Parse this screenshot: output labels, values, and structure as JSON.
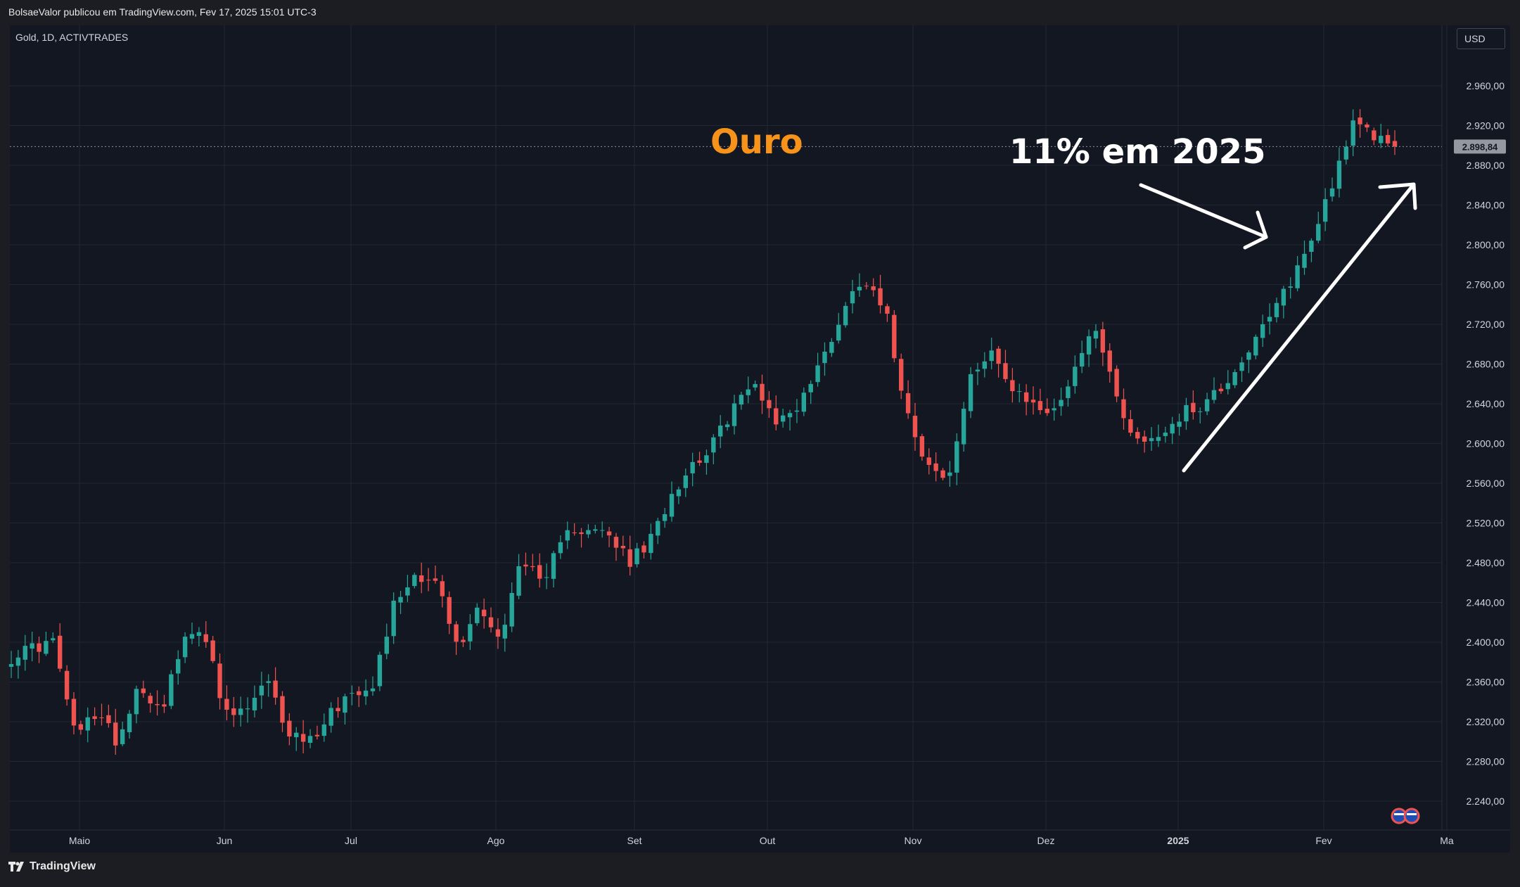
{
  "header": {
    "publish_line": "BolsaeValor publicou em TradingView.com, Fev 17, 2025 15:01 UTC-3"
  },
  "chart": {
    "symbol_line": "Gold, 1D, ACTIVTRADES",
    "currency_button": "USD",
    "last_price_label": "2.898,84",
    "annotation_title": "Ouro",
    "annotation_gain": "11% em 2025",
    "footer_brand": "TradingView"
  },
  "colors": {
    "background": "#131722",
    "up": "#26a69a",
    "down": "#ef5350",
    "title_orange": "#f7931a",
    "grid": "#232733",
    "axis_text": "#d1d4dc"
  },
  "chart_data": {
    "type": "candlestick",
    "instrument": "Gold",
    "interval": "1D",
    "source": "ACTIVTRADES",
    "currency": "USD",
    "ylim": [
      2205,
      2990
    ],
    "y_ticks": [
      2240,
      2280,
      2320,
      2360,
      2400,
      2440,
      2480,
      2520,
      2560,
      2600,
      2640,
      2680,
      2720,
      2760,
      2800,
      2840,
      2880,
      2920,
      2960
    ],
    "y_tick_labels": [
      "2.240,00",
      "2.280,00",
      "2.320,00",
      "2.360,00",
      "2.400,00",
      "2.440,00",
      "2.480,00",
      "2.520,00",
      "2.560,00",
      "2.600,00",
      "2.640,00",
      "2.680,00",
      "2.720,00",
      "2.760,00",
      "2.800,00",
      "2.840,00",
      "2.880,00",
      "2.920,00",
      "2.960,00"
    ],
    "x_labels": [
      "Maio",
      "Jun",
      "Jul",
      "Ago",
      "Set",
      "Out",
      "Nov",
      "Dez",
      "2025",
      "Fev",
      "Ma"
    ],
    "last_price": 2898.84,
    "trend_points": [
      [
        2385,
        2395
      ],
      [
        2400,
        2305
      ],
      [
        2330,
        2300
      ],
      [
        2360,
        2330
      ],
      [
        2395,
        2420
      ],
      [
        2325,
        2330
      ],
      [
        2360,
        2310
      ],
      [
        2300,
        2330
      ],
      [
        2350,
        2360
      ],
      [
        2440,
        2470
      ],
      [
        2460,
        2390
      ],
      [
        2440,
        2400
      ],
      [
        2490,
        2450
      ],
      [
        2520,
        2510
      ],
      [
        2510,
        2480
      ],
      [
        2500,
        2550
      ],
      [
        2580,
        2600
      ],
      [
        2640,
        2660
      ],
      [
        2620,
        2640
      ],
      [
        2680,
        2730
      ],
      [
        2770,
        2740
      ],
      [
        2640,
        2580
      ],
      [
        2560,
        2660
      ],
      [
        2700,
        2650
      ],
      [
        2640,
        2630
      ],
      [
        2680,
        2720
      ],
      [
        2640,
        2600
      ],
      [
        2610,
        2630
      ],
      [
        2640,
        2660
      ],
      [
        2690,
        2720
      ],
      [
        2760,
        2800
      ],
      [
        2860,
        2920
      ],
      [
        2910,
        2898.84
      ]
    ]
  }
}
